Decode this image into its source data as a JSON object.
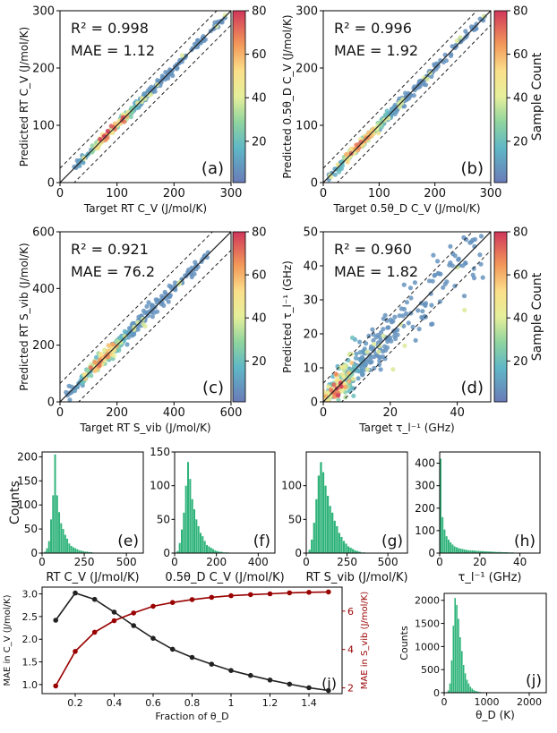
{
  "figure": {
    "panels": [
      "(a)",
      "(b)",
      "(c)",
      "(d)",
      "(e)",
      "(f)",
      "(g)",
      "(h)",
      "(i)",
      "(j)"
    ]
  },
  "colorbar": {
    "label": "Sample Count",
    "ticks": [
      "20",
      "40",
      "60",
      "80"
    ],
    "range": [
      1,
      80
    ]
  },
  "chart_data": [
    {
      "type": "scatter",
      "panel": "(a)",
      "xlabel": "Target RT C_V (J/mol/K)",
      "ylabel": "Predicted RT C_V (J/mol/K)",
      "xlim": [
        0,
        300
      ],
      "ylim": [
        0,
        300
      ],
      "ticks": [
        0,
        100,
        200,
        300
      ],
      "r2": "R² = 0.998",
      "mae": "MAE = 1.12",
      "band": 25,
      "n": 320,
      "xmin": 25,
      "xmax": 290,
      "noise": 3.5,
      "dense_center": 90,
      "dense_spread": 55
    },
    {
      "type": "scatter",
      "panel": "(b)",
      "xlabel": "Target 0.5θ_D C_V (J/mol/K)",
      "ylabel": "Predicted 0.5θ_D C_V (J/mol/K)",
      "xlim": [
        0,
        300
      ],
      "ylim": [
        0,
        300
      ],
      "ticks": [
        0,
        100,
        200,
        300
      ],
      "r2": "R² = 0.996",
      "mae": "MAE = 1.92",
      "band": 25,
      "n": 320,
      "xmin": 10,
      "xmax": 290,
      "noise": 4.5,
      "dense_center": 70,
      "dense_spread": 55
    },
    {
      "type": "scatter",
      "panel": "(c)",
      "xlabel": "Target RT S_vib (J/mol/K)",
      "ylabel": "Predicted RT S_vib (J/mol/K)",
      "xlim": [
        0,
        600
      ],
      "ylim": [
        0,
        600
      ],
      "ticks": [
        0,
        200,
        400,
        600
      ],
      "r2": "R² = 0.921",
      "mae": "MAE = 76.2",
      "band": 65,
      "n": 320,
      "xmin": 20,
      "xmax": 520,
      "noise": 12,
      "dense_center": 150,
      "dense_spread": 90
    },
    {
      "type": "scatter",
      "panel": "(d)",
      "xlabel": "Target τ_l⁻¹ (GHz)",
      "ylabel": "Predicted τ_l⁻¹ (GHz)",
      "xlim": [
        0,
        50
      ],
      "ylim": [
        0,
        50
      ],
      "ticks_x": [
        0,
        20,
        40
      ],
      "ticks": [
        0,
        10,
        20,
        30,
        40,
        50
      ],
      "r2": "R² = 0.960",
      "mae": "MAE = 1.82",
      "band": 5.5,
      "n": 380,
      "xmin": 0,
      "xmax": 48,
      "noise": 2.0,
      "dense_center": 3,
      "dense_spread": 8
    },
    {
      "type": "histogram",
      "panel": "(e)",
      "xlabel": "RT C_V (J/mol/K)",
      "ylabel": "Counts",
      "xlim": [
        0,
        600
      ],
      "xticks": [
        0,
        250,
        500
      ],
      "ylim": [
        0,
        210
      ],
      "yticks": [
        0,
        50,
        100,
        150,
        200
      ],
      "bin_start": 0,
      "bin_width": 12,
      "counts": [
        0,
        3,
        10,
        25,
        70,
        120,
        205,
        120,
        85,
        62,
        50,
        38,
        30,
        20,
        15,
        12,
        10,
        8,
        6,
        5,
        4,
        3,
        3,
        2,
        2,
        1,
        1,
        1,
        0,
        0
      ]
    },
    {
      "type": "histogram",
      "panel": "(f)",
      "xlabel": "0.5θ_D C_V (J/mol/K)",
      "ylabel": "",
      "xlim": [
        0,
        480
      ],
      "xticks": [
        0,
        200,
        400
      ],
      "ylim": [
        0,
        150
      ],
      "yticks": [
        0,
        50,
        100,
        150
      ],
      "bin_start": 0,
      "bin_width": 10,
      "counts": [
        0,
        3,
        15,
        35,
        60,
        100,
        135,
        110,
        80,
        65,
        50,
        40,
        30,
        25,
        18,
        12,
        10,
        8,
        6,
        4,
        3,
        2,
        2,
        1,
        1,
        1,
        0
      ]
    },
    {
      "type": "histogram",
      "panel": "(g)",
      "xlabel": "RT S_vib (J/mol/K)",
      "ylabel": "",
      "xlim": [
        0,
        620
      ],
      "xticks": [
        0,
        250,
        500
      ],
      "ylim": [
        0,
        150
      ],
      "yticks": [
        0,
        50,
        100
      ],
      "bin_start": 0,
      "bin_width": 14,
      "counts": [
        0,
        5,
        20,
        45,
        80,
        115,
        135,
        120,
        100,
        85,
        70,
        60,
        48,
        40,
        30,
        24,
        18,
        14,
        10,
        8,
        6,
        4,
        3,
        2,
        1,
        1,
        0
      ]
    },
    {
      "type": "histogram",
      "panel": "(h)",
      "xlabel": "τ_l⁻¹ (GHz)",
      "ylabel": "",
      "xlim": [
        0,
        50
      ],
      "xticks": [
        0,
        20,
        40
      ],
      "ylim": [
        0,
        450
      ],
      "yticks": [
        0,
        100,
        200,
        300,
        400
      ],
      "bin_start": 0,
      "bin_width": 1,
      "counts": [
        420,
        160,
        105,
        75,
        60,
        48,
        38,
        30,
        26,
        22,
        20,
        18,
        16,
        14,
        13,
        12,
        12,
        11,
        10,
        10,
        9,
        9,
        8,
        8,
        7,
        7,
        6,
        6,
        5,
        5,
        5,
        4,
        4,
        4,
        3,
        3,
        3,
        2,
        2,
        2,
        2,
        1,
        1,
        1,
        1,
        1,
        0,
        0
      ]
    },
    {
      "type": "line",
      "panel": "(i)",
      "xlabel": "Fraction of θ_D",
      "ylabel": "MAE in C_V (J/mol/K)",
      "ylabel2": "MAE in S_vib (J/mol/K)",
      "x": [
        0.1,
        0.2,
        0.3,
        0.4,
        0.5,
        0.6,
        0.7,
        0.8,
        0.9,
        1.0,
        1.1,
        1.2,
        1.3,
        1.4,
        1.5
      ],
      "series": [
        {
          "name": "MAE in C_V",
          "axis": "left",
          "color": "#222222",
          "values": [
            2.42,
            3.02,
            2.88,
            2.6,
            2.3,
            2.02,
            1.78,
            1.6,
            1.45,
            1.31,
            1.2,
            1.1,
            1.01,
            0.93,
            0.87
          ]
        },
        {
          "name": "MAE in S_vib",
          "axis": "right",
          "color": "#990000",
          "values": [
            2.1,
            3.9,
            4.9,
            5.5,
            5.9,
            6.25,
            6.45,
            6.6,
            6.72,
            6.8,
            6.86,
            6.9,
            6.95,
            6.98,
            7.0
          ]
        }
      ],
      "xlim": [
        0.03,
        1.57
      ],
      "xticks": [
        0.2,
        0.4,
        0.6,
        0.8,
        1.0,
        1.2,
        1.4
      ],
      "ylim": [
        0.8,
        3.15
      ],
      "yticks": [
        1.0,
        1.5,
        2.0,
        2.5,
        3.0
      ],
      "ylim2": [
        1.7,
        7.25
      ],
      "yticks2": [
        2,
        4,
        6
      ]
    },
    {
      "type": "histogram",
      "panel": "(j)",
      "xlabel": "θ_D (K)",
      "ylabel": "Counts",
      "xlim": [
        0,
        2400
      ],
      "xticks": [
        0,
        1000,
        2000
      ],
      "ylim": [
        0,
        2150
      ],
      "yticks": [
        0,
        500,
        1000,
        1500,
        2000
      ],
      "bin_start": 0,
      "bin_width": 40,
      "counts": [
        0,
        10,
        50,
        200,
        700,
        1450,
        2050,
        1900,
        1600,
        1200,
        900,
        600,
        420,
        280,
        200,
        130,
        90,
        60,
        40,
        30,
        20,
        15,
        10,
        8,
        6,
        5,
        4,
        3,
        2,
        2,
        1,
        1
      ]
    }
  ]
}
